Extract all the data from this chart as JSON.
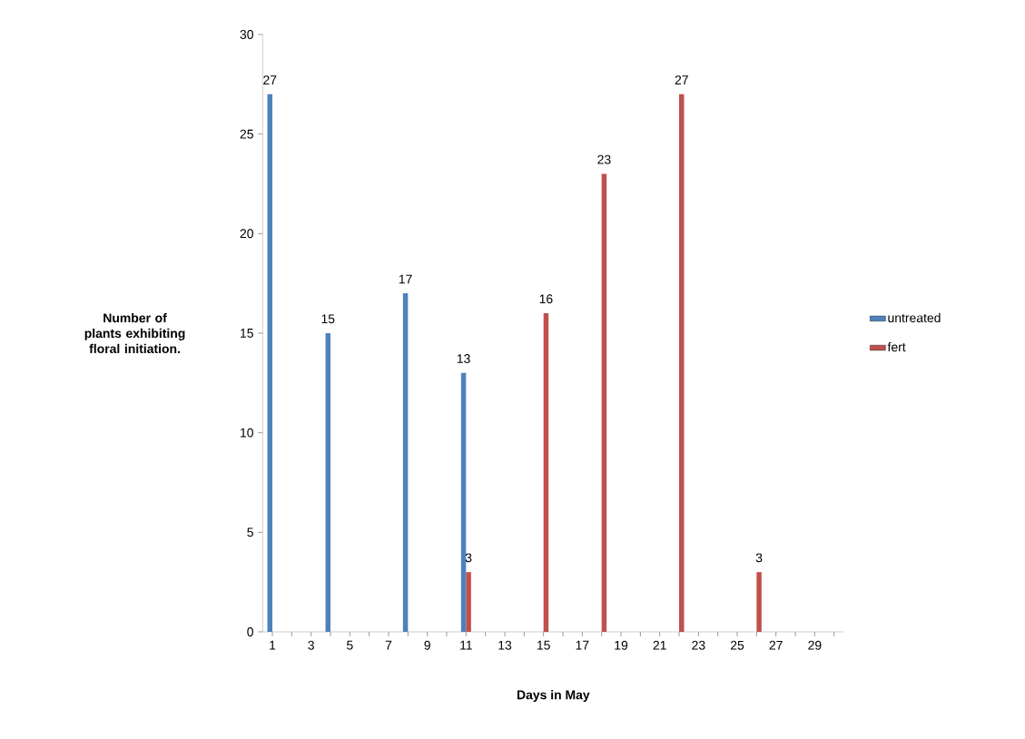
{
  "chart_data": {
    "type": "bar",
    "xlabel": "Days in May",
    "ylabel": "Number of plants exhibiting floral initiation.",
    "categories": [
      "1",
      null,
      "3",
      null,
      "5",
      null,
      "7",
      null,
      "9",
      null,
      "11",
      null,
      "13",
      null,
      "15",
      null,
      "17",
      null,
      "19",
      null,
      "21",
      null,
      "23",
      null,
      "25",
      null,
      "27",
      null,
      "29",
      null
    ],
    "series": [
      {
        "name": "untreated",
        "color": "#4f81bd",
        "values": [
          27,
          null,
          null,
          15,
          null,
          null,
          null,
          17,
          null,
          null,
          13,
          null,
          null,
          null,
          null,
          null,
          null,
          null,
          null,
          null,
          null,
          null,
          null,
          null,
          null,
          null,
          null,
          null,
          null,
          null
        ]
      },
      {
        "name": "fert",
        "color": "#c0504d",
        "values": [
          null,
          null,
          null,
          null,
          null,
          null,
          null,
          null,
          null,
          null,
          3,
          null,
          null,
          null,
          16,
          null,
          null,
          23,
          null,
          null,
          null,
          27,
          null,
          null,
          null,
          3,
          null,
          null,
          null,
          null
        ]
      }
    ],
    "ylim": [
      0,
      30
    ],
    "yticks": [
      0,
      5,
      10,
      15,
      20,
      25,
      30
    ],
    "data_labels": true,
    "legend": "right",
    "grid": false
  }
}
